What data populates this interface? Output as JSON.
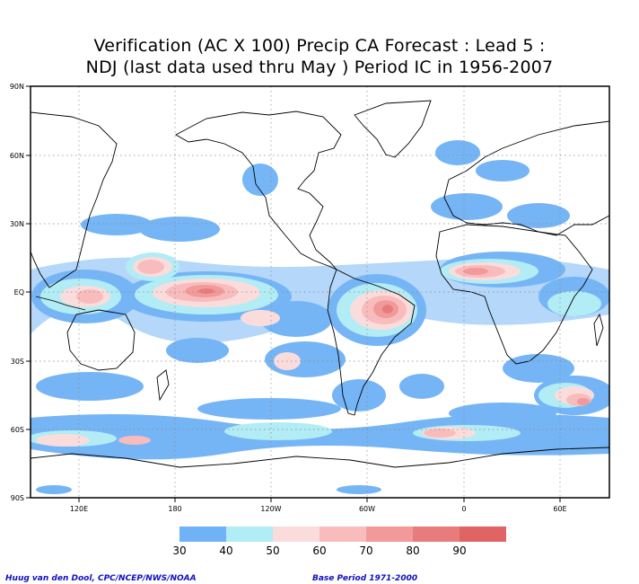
{
  "title": {
    "line1": "Verification (AC X 100) Precip CA Forecast : Lead 5 :",
    "line2": "NDJ (last data used thru May ) Period IC in 1956-2007"
  },
  "map": {
    "lon_ticks": [
      "120E",
      "180",
      "120W",
      "60W",
      "0",
      "60E"
    ],
    "lat_ticks": [
      "90N",
      "60N",
      "30N",
      "EQ",
      "30S",
      "60S",
      "90S"
    ]
  },
  "legend": {
    "labels": [
      "30",
      "40",
      "50",
      "60",
      "70",
      "80",
      "90"
    ],
    "colors": [
      "#6fb2f5",
      "#b2ecf5",
      "#fbdcdc",
      "#f9bcbc",
      "#f29a9a",
      "#e87c7c",
      "#e06464"
    ]
  },
  "credits": {
    "left": "Huug van den Dool, CPC/NCEP/NWS/NOAA",
    "right": "Base Period 1971-2000"
  }
}
